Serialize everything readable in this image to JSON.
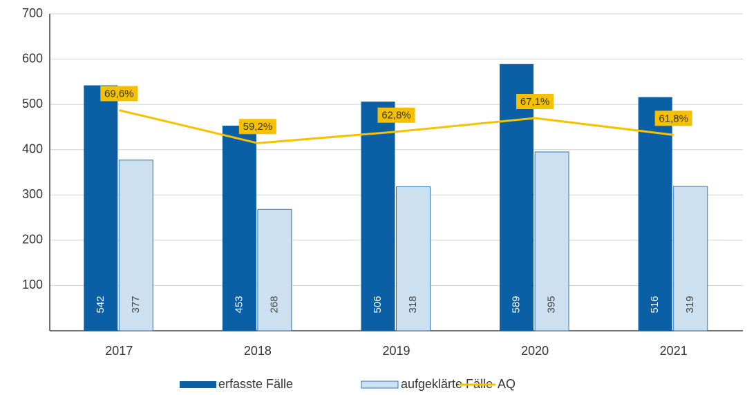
{
  "chart_data": {
    "type": "bar_line",
    "categories": [
      "2017",
      "2018",
      "2019",
      "2020",
      "2021"
    ],
    "series": [
      {
        "name": "erfasste Fälle",
        "color": "#0b5fa5",
        "values": [
          542,
          453,
          506,
          589,
          516
        ]
      },
      {
        "name": "aufgeklärte Fälle",
        "color": "#cce0ef",
        "values": [
          377,
          268,
          318,
          395,
          319
        ]
      },
      {
        "name": "AQ",
        "color": "#f5c200",
        "axis": "y2",
        "values": [
          69.6,
          59.2,
          62.8,
          67.1,
          61.8
        ],
        "value_labels": [
          "69,6%",
          "59,2%",
          "62,8%",
          "67,1%",
          "61,8%"
        ]
      }
    ],
    "ylim": [
      0,
      700
    ],
    "yticks": [
      100,
      200,
      300,
      400,
      500,
      600,
      700
    ],
    "y2lim": [
      0,
      100
    ],
    "grid": true,
    "legend": "bottom"
  }
}
